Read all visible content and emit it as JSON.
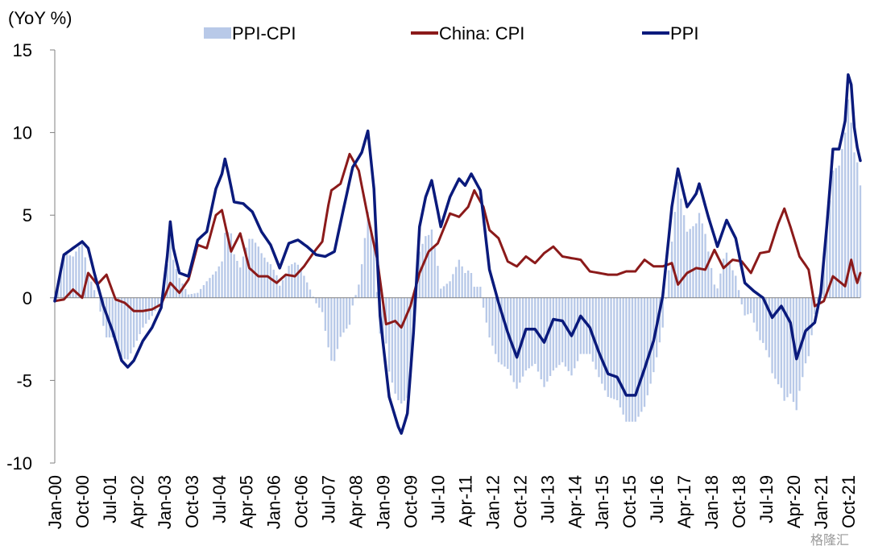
{
  "chart_data": {
    "type": "bar+line",
    "unit_label": "(YoY %)",
    "ylim": [
      -10,
      15
    ],
    "yticks": [
      15,
      10,
      5,
      0,
      -5,
      -10
    ],
    "negative_tick_color": "#d00000",
    "xlabels": [
      "Jan-00",
      "Oct-00",
      "Jul-01",
      "Apr-02",
      "Jan-03",
      "Oct-03",
      "Jul-04",
      "Apr-05",
      "Jan-06",
      "Oct-06",
      "Jul-07",
      "Apr-08",
      "Jan-09",
      "Oct-09",
      "Jul-10",
      "Apr-11",
      "Jan-12",
      "Oct-12",
      "Jul-13",
      "Apr-14",
      "Jan-15",
      "Oct-15",
      "Jul-16",
      "Apr-17",
      "Jan-18",
      "Oct-18",
      "Jul-19",
      "Apr-20",
      "Jan-21",
      "Oct-21"
    ],
    "x_start": "2000-01",
    "x_end": "2022-02",
    "legend": [
      "PPI-CPI",
      "China: CPI",
      "PPI"
    ],
    "legend_position": "top",
    "watermark": "格隆汇",
    "series": [
      {
        "name": "PPI",
        "kind": "line",
        "color": "#0a1a7c",
        "points": [
          [
            "2000-01",
            -0.2
          ],
          [
            "2000-04",
            2.6
          ],
          [
            "2000-07",
            3.0
          ],
          [
            "2000-10",
            3.4
          ],
          [
            "2000-12",
            3.0
          ],
          [
            "2001-02",
            1.5
          ],
          [
            "2001-05",
            -0.5
          ],
          [
            "2001-08",
            -2.0
          ],
          [
            "2001-11",
            -3.8
          ],
          [
            "2002-01",
            -4.2
          ],
          [
            "2002-03",
            -3.8
          ],
          [
            "2002-06",
            -2.6
          ],
          [
            "2002-09",
            -1.8
          ],
          [
            "2002-12",
            -0.6
          ],
          [
            "2003-02",
            2.5
          ],
          [
            "2003-03",
            4.6
          ],
          [
            "2003-04",
            3.0
          ],
          [
            "2003-06",
            1.5
          ],
          [
            "2003-09",
            1.3
          ],
          [
            "2003-12",
            3.5
          ],
          [
            "2004-03",
            4.0
          ],
          [
            "2004-06",
            6.6
          ],
          [
            "2004-08",
            7.5
          ],
          [
            "2004-09",
            8.4
          ],
          [
            "2004-10",
            7.6
          ],
          [
            "2004-12",
            5.8
          ],
          [
            "2005-03",
            5.7
          ],
          [
            "2005-06",
            5.2
          ],
          [
            "2005-09",
            4.0
          ],
          [
            "2005-12",
            3.2
          ],
          [
            "2006-03",
            1.8
          ],
          [
            "2006-06",
            3.3
          ],
          [
            "2006-09",
            3.5
          ],
          [
            "2006-12",
            3.1
          ],
          [
            "2007-03",
            2.6
          ],
          [
            "2007-06",
            2.5
          ],
          [
            "2007-09",
            2.8
          ],
          [
            "2007-12",
            5.4
          ],
          [
            "2008-03",
            7.9
          ],
          [
            "2008-06",
            8.8
          ],
          [
            "2008-08",
            10.1
          ],
          [
            "2008-10",
            6.6
          ],
          [
            "2008-12",
            -1.1
          ],
          [
            "2009-03",
            -6.0
          ],
          [
            "2009-06",
            -7.8
          ],
          [
            "2009-07",
            -8.2
          ],
          [
            "2009-09",
            -7.0
          ],
          [
            "2009-11",
            -2.1
          ],
          [
            "2010-01",
            4.3
          ],
          [
            "2010-03",
            6.1
          ],
          [
            "2010-05",
            7.1
          ],
          [
            "2010-08",
            4.3
          ],
          [
            "2010-11",
            6.1
          ],
          [
            "2011-02",
            7.2
          ],
          [
            "2011-04",
            6.8
          ],
          [
            "2011-06",
            7.5
          ],
          [
            "2011-09",
            6.5
          ],
          [
            "2011-12",
            1.7
          ],
          [
            "2012-03",
            -0.3
          ],
          [
            "2012-06",
            -2.1
          ],
          [
            "2012-09",
            -3.6
          ],
          [
            "2012-12",
            -1.9
          ],
          [
            "2013-03",
            -1.9
          ],
          [
            "2013-06",
            -2.7
          ],
          [
            "2013-09",
            -1.3
          ],
          [
            "2013-12",
            -1.4
          ],
          [
            "2014-03",
            -2.3
          ],
          [
            "2014-06",
            -1.1
          ],
          [
            "2014-09",
            -1.8
          ],
          [
            "2014-12",
            -3.3
          ],
          [
            "2015-03",
            -4.6
          ],
          [
            "2015-06",
            -4.8
          ],
          [
            "2015-09",
            -5.9
          ],
          [
            "2015-12",
            -5.9
          ],
          [
            "2016-03",
            -4.3
          ],
          [
            "2016-06",
            -2.6
          ],
          [
            "2016-09",
            0.1
          ],
          [
            "2016-12",
            5.5
          ],
          [
            "2017-02",
            7.8
          ],
          [
            "2017-05",
            5.5
          ],
          [
            "2017-08",
            6.3
          ],
          [
            "2017-09",
            6.9
          ],
          [
            "2017-12",
            4.9
          ],
          [
            "2018-03",
            3.1
          ],
          [
            "2018-06",
            4.7
          ],
          [
            "2018-09",
            3.6
          ],
          [
            "2018-12",
            0.9
          ],
          [
            "2019-03",
            0.4
          ],
          [
            "2019-06",
            0.0
          ],
          [
            "2019-09",
            -1.2
          ],
          [
            "2019-12",
            -0.5
          ],
          [
            "2020-03",
            -1.5
          ],
          [
            "2020-05",
            -3.7
          ],
          [
            "2020-08",
            -2.0
          ],
          [
            "2020-11",
            -1.5
          ],
          [
            "2021-01",
            0.3
          ],
          [
            "2021-03",
            4.4
          ],
          [
            "2021-05",
            9.0
          ],
          [
            "2021-07",
            9.0
          ],
          [
            "2021-09",
            10.7
          ],
          [
            "2021-10",
            13.5
          ],
          [
            "2021-11",
            12.9
          ],
          [
            "2021-12",
            10.3
          ],
          [
            "2022-01",
            9.1
          ],
          [
            "2022-02",
            8.3
          ]
        ]
      },
      {
        "name": "China: CPI",
        "kind": "line",
        "color": "#8b1a1a",
        "points": [
          [
            "2000-01",
            -0.2
          ],
          [
            "2000-04",
            -0.1
          ],
          [
            "2000-07",
            0.5
          ],
          [
            "2000-10",
            0.0
          ],
          [
            "2000-12",
            1.5
          ],
          [
            "2001-03",
            0.8
          ],
          [
            "2001-06",
            1.4
          ],
          [
            "2001-09",
            -0.1
          ],
          [
            "2001-12",
            -0.3
          ],
          [
            "2002-03",
            -0.8
          ],
          [
            "2002-06",
            -0.8
          ],
          [
            "2002-09",
            -0.7
          ],
          [
            "2002-12",
            -0.4
          ],
          [
            "2003-03",
            0.9
          ],
          [
            "2003-06",
            0.3
          ],
          [
            "2003-09",
            1.1
          ],
          [
            "2003-12",
            3.2
          ],
          [
            "2004-03",
            3.0
          ],
          [
            "2004-06",
            5.0
          ],
          [
            "2004-08",
            5.3
          ],
          [
            "2004-11",
            2.8
          ],
          [
            "2005-02",
            3.9
          ],
          [
            "2005-05",
            1.8
          ],
          [
            "2005-08",
            1.3
          ],
          [
            "2005-11",
            1.3
          ],
          [
            "2006-02",
            0.9
          ],
          [
            "2006-05",
            1.4
          ],
          [
            "2006-08",
            1.3
          ],
          [
            "2006-11",
            1.9
          ],
          [
            "2007-02",
            2.7
          ],
          [
            "2007-05",
            3.4
          ],
          [
            "2007-07",
            5.6
          ],
          [
            "2007-08",
            6.5
          ],
          [
            "2007-11",
            6.9
          ],
          [
            "2008-02",
            8.7
          ],
          [
            "2008-05",
            7.7
          ],
          [
            "2008-08",
            4.9
          ],
          [
            "2008-11",
            2.4
          ],
          [
            "2009-02",
            -1.6
          ],
          [
            "2009-05",
            -1.4
          ],
          [
            "2009-07",
            -1.8
          ],
          [
            "2009-10",
            -0.5
          ],
          [
            "2010-01",
            1.5
          ],
          [
            "2010-04",
            2.8
          ],
          [
            "2010-07",
            3.3
          ],
          [
            "2010-11",
            5.1
          ],
          [
            "2011-02",
            4.9
          ],
          [
            "2011-05",
            5.5
          ],
          [
            "2011-07",
            6.5
          ],
          [
            "2011-10",
            5.5
          ],
          [
            "2011-12",
            4.1
          ],
          [
            "2012-03",
            3.6
          ],
          [
            "2012-06",
            2.2
          ],
          [
            "2012-09",
            1.9
          ],
          [
            "2012-12",
            2.5
          ],
          [
            "2013-03",
            2.1
          ],
          [
            "2013-06",
            2.7
          ],
          [
            "2013-09",
            3.1
          ],
          [
            "2013-12",
            2.5
          ],
          [
            "2014-03",
            2.4
          ],
          [
            "2014-06",
            2.3
          ],
          [
            "2014-09",
            1.6
          ],
          [
            "2014-12",
            1.5
          ],
          [
            "2015-03",
            1.4
          ],
          [
            "2015-06",
            1.4
          ],
          [
            "2015-09",
            1.6
          ],
          [
            "2015-12",
            1.6
          ],
          [
            "2016-03",
            2.3
          ],
          [
            "2016-06",
            1.9
          ],
          [
            "2016-09",
            1.9
          ],
          [
            "2016-12",
            2.1
          ],
          [
            "2017-02",
            0.8
          ],
          [
            "2017-05",
            1.5
          ],
          [
            "2017-08",
            1.8
          ],
          [
            "2017-11",
            1.7
          ],
          [
            "2018-02",
            2.9
          ],
          [
            "2018-05",
            1.8
          ],
          [
            "2018-08",
            2.3
          ],
          [
            "2018-11",
            2.2
          ],
          [
            "2019-02",
            1.5
          ],
          [
            "2019-05",
            2.7
          ],
          [
            "2019-08",
            2.8
          ],
          [
            "2019-11",
            4.5
          ],
          [
            "2020-01",
            5.4
          ],
          [
            "2020-03",
            4.3
          ],
          [
            "2020-06",
            2.5
          ],
          [
            "2020-09",
            1.7
          ],
          [
            "2020-11",
            -0.5
          ],
          [
            "2021-02",
            -0.2
          ],
          [
            "2021-05",
            1.3
          ],
          [
            "2021-07",
            1.0
          ],
          [
            "2021-09",
            0.7
          ],
          [
            "2021-11",
            2.3
          ],
          [
            "2021-12",
            1.5
          ],
          [
            "2022-01",
            0.9
          ],
          [
            "2022-02",
            1.5
          ]
        ]
      },
      {
        "name": "PPI-CPI",
        "kind": "bar",
        "color": "#b8c9e8",
        "derived_from": [
          "PPI",
          "China: CPI"
        ]
      }
    ]
  }
}
